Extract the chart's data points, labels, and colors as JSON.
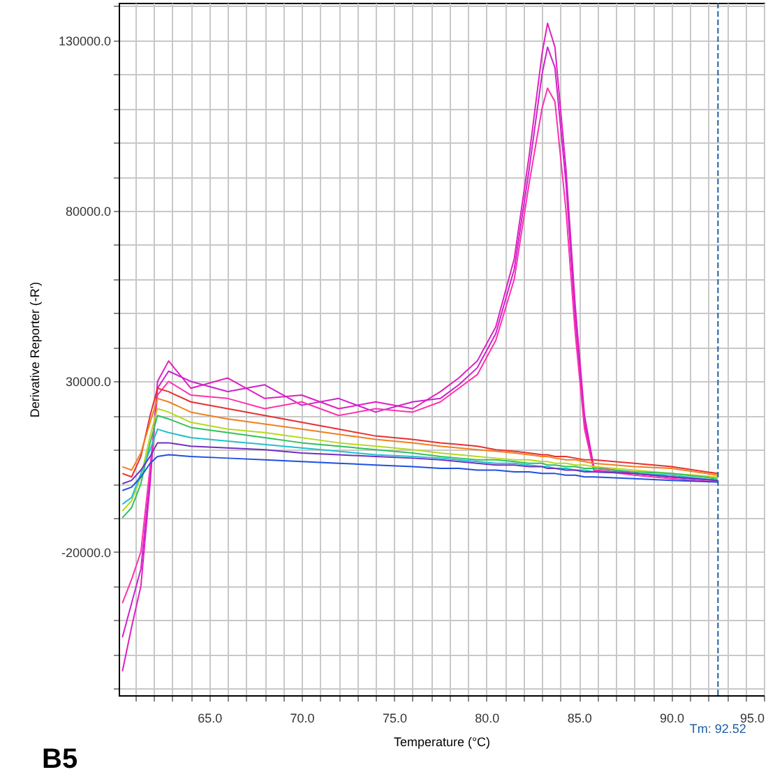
{
  "chart_data": {
    "type": "line",
    "xlabel": "Temperature (°C)",
    "ylabel": "Derivative Reporter (-R')",
    "annotations": [
      "B5"
    ],
    "x": [
      60.3,
      60.8,
      61.3,
      61.8,
      62.2,
      62.8,
      64,
      66,
      68,
      70,
      72,
      74,
      76,
      77.5,
      78.5,
      79.5,
      80.5,
      81.5,
      82.3,
      83,
      83.3,
      83.7,
      84.3,
      84.8,
      85.3,
      85.8,
      88,
      90,
      92.5
    ],
    "series": [
      {
        "color": "#e020c0",
        "values": [
          -55000,
          -42000,
          -30000,
          0,
          30000,
          36000,
          28000,
          31000,
          25000,
          26000,
          22000,
          24000,
          22000,
          27000,
          31000,
          36000,
          46000,
          66000,
          96000,
          126000,
          135000,
          128000,
          92000,
          52000,
          20000,
          5000,
          3000,
          2000,
          1000
        ]
      },
      {
        "color": "#cc22cc",
        "values": [
          -45000,
          -35000,
          -25000,
          2000,
          28000,
          33000,
          30000,
          27000,
          29000,
          23000,
          25000,
          21000,
          24000,
          25000,
          29000,
          34000,
          44000,
          63000,
          92000,
          120000,
          128000,
          122000,
          88000,
          48000,
          18000,
          4000,
          3000,
          2000,
          1000
        ]
      },
      {
        "color": "#ff30b0",
        "values": [
          -35000,
          -28000,
          -20000,
          5000,
          26000,
          30000,
          26000,
          25000,
          22000,
          24000,
          20000,
          22000,
          21000,
          24000,
          28000,
          32000,
          42000,
          60000,
          88000,
          110000,
          116000,
          112000,
          80000,
          44000,
          16000,
          4000,
          2500,
          1500,
          500
        ]
      },
      {
        "color": "#e83030",
        "values": [
          3000,
          2000,
          8000,
          20000,
          28000,
          27000,
          24000,
          22000,
          20000,
          18000,
          16000,
          14000,
          13000,
          12000,
          11500,
          11000,
          10000,
          9500,
          9000,
          8500,
          8500,
          8000,
          8000,
          7500,
          7000,
          7000,
          6000,
          5000,
          3000
        ]
      },
      {
        "color": "#f08020",
        "values": [
          5000,
          4000,
          9000,
          18000,
          25000,
          24000,
          21000,
          19000,
          17500,
          16000,
          14500,
          13000,
          12000,
          11000,
          10500,
          10000,
          9500,
          9000,
          8500,
          8000,
          8000,
          7500,
          7000,
          7000,
          6500,
          6000,
          5000,
          4500,
          2500
        ]
      },
      {
        "color": "#b8d820",
        "values": [
          -8000,
          -5000,
          2000,
          14000,
          22000,
          21000,
          18000,
          16000,
          15000,
          13500,
          12000,
          11000,
          10000,
          9000,
          8500,
          8000,
          7500,
          7000,
          7000,
          6500,
          6500,
          6000,
          6000,
          5500,
          5500,
          5000,
          4000,
          3000,
          2000
        ]
      },
      {
        "color": "#30c060",
        "values": [
          -10000,
          -7000,
          0,
          12000,
          20000,
          19000,
          16500,
          15000,
          13500,
          12000,
          11000,
          10000,
          9000,
          8000,
          7500,
          7000,
          7000,
          6500,
          6000,
          6000,
          5500,
          5500,
          5000,
          5000,
          4500,
          4500,
          3500,
          3000,
          1500
        ]
      },
      {
        "color": "#20c0d0",
        "values": [
          -6000,
          -4000,
          3000,
          10000,
          16000,
          15000,
          13500,
          12500,
          11500,
          10500,
          9500,
          8500,
          8000,
          7500,
          7000,
          6500,
          6000,
          6000,
          5500,
          5000,
          5000,
          4500,
          4500,
          4000,
          4000,
          3500,
          3000,
          2500,
          1000
        ]
      },
      {
        "color": "#2050e0",
        "values": [
          -2000,
          -1000,
          2000,
          6000,
          8000,
          8500,
          8000,
          7500,
          7000,
          6500,
          6000,
          5500,
          5000,
          4500,
          4500,
          4000,
          4000,
          3500,
          3500,
          3000,
          3000,
          3000,
          2500,
          2500,
          2000,
          2000,
          1500,
          1000,
          500
        ]
      },
      {
        "color": "#7030c0",
        "values": [
          0,
          1000,
          4000,
          8000,
          12000,
          12000,
          11000,
          10500,
          10000,
          9000,
          8500,
          8000,
          7500,
          7000,
          6500,
          6000,
          5500,
          5500,
          5000,
          5000,
          4500,
          4500,
          4000,
          4000,
          3500,
          3500,
          3000,
          2000,
          1000
        ]
      }
    ],
    "xlim": [
      60.1,
      95
    ],
    "ylim": [
      -62000,
      141000
    ],
    "xticks": [
      {
        "value": 61,
        "label": null
      },
      {
        "value": 62,
        "label": null
      },
      {
        "value": 63,
        "label": null
      },
      {
        "value": 64,
        "label": null
      },
      {
        "value": 65,
        "label": "65.0"
      },
      {
        "value": 66,
        "label": null
      },
      {
        "value": 67,
        "label": null
      },
      {
        "value": 68,
        "label": null
      },
      {
        "value": 69,
        "label": null
      },
      {
        "value": 70,
        "label": "70.0"
      },
      {
        "value": 71,
        "label": null
      },
      {
        "value": 72,
        "label": null
      },
      {
        "value": 73,
        "label": null
      },
      {
        "value": 74,
        "label": null
      },
      {
        "value": 75,
        "label": "75.0"
      },
      {
        "value": 76,
        "label": null
      },
      {
        "value": 77,
        "label": null
      },
      {
        "value": 78,
        "label": null
      },
      {
        "value": 79,
        "label": null
      },
      {
        "value": 80,
        "label": "80.0"
      },
      {
        "value": 81,
        "label": null
      },
      {
        "value": 82,
        "label": null
      },
      {
        "value": 83,
        "label": null
      },
      {
        "value": 84,
        "label": null
      },
      {
        "value": 85,
        "label": "85.0"
      },
      {
        "value": 86,
        "label": null
      },
      {
        "value": 87,
        "label": null
      },
      {
        "value": 88,
        "label": null
      },
      {
        "value": 89,
        "label": null
      },
      {
        "value": 90,
        "label": "90.0"
      },
      {
        "value": 91,
        "label": null
      },
      {
        "value": 92,
        "label": null
      },
      {
        "value": 93,
        "label": null
      },
      {
        "value": 94,
        "label": null
      },
      {
        "value": 95,
        "label": "95.0"
      }
    ],
    "yticks": [
      {
        "value": -60000,
        "label": null
      },
      {
        "value": -50000,
        "label": null
      },
      {
        "value": -40000,
        "label": null
      },
      {
        "value": -30000,
        "label": null
      },
      {
        "value": -20000,
        "label": "-20000.0"
      },
      {
        "value": -10000,
        "label": null
      },
      {
        "value": 0,
        "label": null
      },
      {
        "value": 10000,
        "label": null
      },
      {
        "value": 20000,
        "label": null
      },
      {
        "value": 30000,
        "label": "30000.0"
      },
      {
        "value": 40000,
        "label": null
      },
      {
        "value": 50000,
        "label": null
      },
      {
        "value": 60000,
        "label": null
      },
      {
        "value": 70000,
        "label": null
      },
      {
        "value": 80000,
        "label": "80000.0"
      },
      {
        "value": 90000,
        "label": null
      },
      {
        "value": 100000,
        "label": null
      },
      {
        "value": 110000,
        "label": null
      },
      {
        "value": 120000,
        "label": null
      },
      {
        "value": 130000,
        "label": "130000.0"
      },
      {
        "value": 140000,
        "label": null
      }
    ],
    "grid": true,
    "ref_lines": [
      {
        "axis": "x",
        "value": 92.52,
        "label": "Tm: 92.52",
        "color": "#1f5fa0",
        "line_style": "dashed"
      }
    ]
  }
}
